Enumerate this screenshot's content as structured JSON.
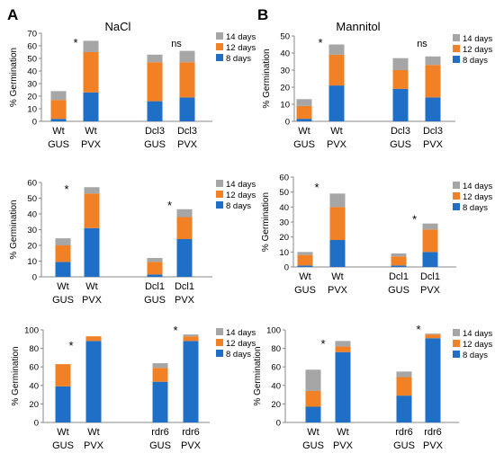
{
  "panel_letters": [
    "A",
    "B"
  ],
  "column_titles": [
    "NaCl",
    "Mannitol"
  ],
  "colors": {
    "d8": "#1f6fc6",
    "d12": "#f28024",
    "d14": "#a6a6a6",
    "axis": "#888888"
  },
  "chart_data": [
    {
      "type": "bar",
      "stacked": true,
      "ylabel": "% Germination",
      "ylim": [
        0,
        70
      ],
      "yticks": [
        0,
        10,
        20,
        30,
        40,
        50,
        60,
        70
      ],
      "categories": [
        [
          "Wt",
          "GUS"
        ],
        [
          "Wt",
          "PVX"
        ],
        [
          "Dcl3",
          "GUS"
        ],
        [
          "Dcl3",
          "PVX"
        ]
      ],
      "series": [
        {
          "name": "8 days",
          "values": [
            2,
            23,
            16,
            19
          ]
        },
        {
          "name": "12 days",
          "values": [
            15,
            32,
            31,
            28
          ]
        },
        {
          "name": "14 days",
          "values": [
            7,
            9,
            6,
            9
          ]
        }
      ],
      "legend": "right",
      "annotations": [
        {
          "text": "*",
          "between": [
            0,
            1
          ]
        },
        {
          "text": "ns",
          "between": [
            2,
            3
          ]
        }
      ]
    },
    {
      "type": "bar",
      "stacked": true,
      "ylabel": "% Germination",
      "ylim": [
        0,
        50
      ],
      "yticks": [
        0,
        10,
        20,
        30,
        40,
        50
      ],
      "categories": [
        [
          "Wt",
          "GUS"
        ],
        [
          "Wt",
          "PVX"
        ],
        [
          "Dcl3",
          "GUS"
        ],
        [
          "Dcl3",
          "PVX"
        ]
      ],
      "series": [
        {
          "name": "8 days",
          "values": [
            1.5,
            21,
            19,
            14
          ]
        },
        {
          "name": "12 days",
          "values": [
            7.5,
            18,
            11,
            19
          ]
        },
        {
          "name": "14 days",
          "values": [
            4,
            6,
            7,
            5
          ]
        }
      ],
      "legend": "right",
      "annotations": [
        {
          "text": "*",
          "between": [
            0,
            1
          ]
        },
        {
          "text": "ns",
          "between": [
            2,
            3
          ]
        }
      ]
    },
    {
      "type": "bar",
      "stacked": true,
      "ylabel": "% Germination",
      "ylim": [
        0,
        60
      ],
      "yticks": [
        0,
        10,
        20,
        30,
        40,
        50,
        60
      ],
      "categories": [
        [
          "Wt",
          "GUS"
        ],
        [
          "Wt",
          "PVX"
        ],
        [
          "Dcl1",
          "GUS"
        ],
        [
          "Dcl1",
          "PVX"
        ]
      ],
      "series": [
        {
          "name": "8 days",
          "values": [
            9.5,
            31,
            1.5,
            24
          ]
        },
        {
          "name": "12 days",
          "values": [
            10.5,
            22,
            8,
            14
          ]
        },
        {
          "name": "14 days",
          "values": [
            4.5,
            4,
            2.5,
            5
          ]
        }
      ],
      "legend": "right",
      "annotations": [
        {
          "text": "*",
          "between": [
            0,
            1
          ]
        },
        {
          "text": "*",
          "between": [
            2,
            3
          ]
        }
      ]
    },
    {
      "type": "bar",
      "stacked": true,
      "ylabel": "% Germination",
      "ylim": [
        0,
        60
      ],
      "yticks": [
        0,
        10,
        20,
        30,
        40,
        50,
        60
      ],
      "categories": [
        [
          "Wt",
          "GUS"
        ],
        [
          "Wt",
          "PVX"
        ],
        [
          "Dcl1",
          "GUS"
        ],
        [
          "Dcl1",
          "PVX"
        ]
      ],
      "series": [
        {
          "name": "8 days",
          "values": [
            1,
            18,
            1,
            10
          ]
        },
        {
          "name": "12 days",
          "values": [
            7,
            22,
            6,
            15
          ]
        },
        {
          "name": "14 days",
          "values": [
            2,
            9,
            2,
            4
          ]
        }
      ],
      "legend": "right",
      "annotations": [
        {
          "text": "*",
          "between": [
            0,
            1
          ]
        },
        {
          "text": "*",
          "between": [
            2,
            3
          ]
        }
      ]
    },
    {
      "type": "bar",
      "stacked": true,
      "ylabel": "% Germination",
      "ylim": [
        0,
        100
      ],
      "yticks": [
        0,
        20,
        40,
        60,
        80,
        100
      ],
      "categories": [
        [
          "Wt",
          "GUS"
        ],
        [
          "Wt",
          "PVX"
        ],
        [
          "rdr6",
          "GUS"
        ],
        [
          "rdr6",
          "PVX"
        ]
      ],
      "series": [
        {
          "name": "8 days",
          "values": [
            39,
            88,
            44,
            88
          ]
        },
        {
          "name": "12 days",
          "values": [
            24,
            5,
            15,
            5
          ]
        },
        {
          "name": "14 days",
          "values": [
            0,
            0,
            5,
            2
          ]
        }
      ],
      "legend": "right",
      "annotations": [
        {
          "text": "*",
          "between": [
            0,
            1
          ]
        },
        {
          "text": "*",
          "between": [
            2,
            3
          ]
        }
      ]
    },
    {
      "type": "bar",
      "stacked": true,
      "ylabel": "% Germination",
      "ylim": [
        0,
        100
      ],
      "yticks": [
        0,
        20,
        40,
        60,
        80,
        100
      ],
      "categories": [
        [
          "Wt",
          "GUS"
        ],
        [
          "Wt",
          "PVX"
        ],
        [
          "rdr6",
          "GUS"
        ],
        [
          "rdr6",
          "PVX"
        ]
      ],
      "series": [
        {
          "name": "8 days",
          "values": [
            17,
            76,
            29,
            91
          ]
        },
        {
          "name": "12 days",
          "values": [
            17,
            6,
            20,
            4
          ]
        },
        {
          "name": "14 days",
          "values": [
            23,
            6,
            6,
            1
          ]
        }
      ],
      "legend": "right",
      "annotations": [
        {
          "text": "*",
          "between": [
            0,
            1
          ]
        },
        {
          "text": "*",
          "between": [
            2,
            3
          ]
        }
      ]
    }
  ]
}
